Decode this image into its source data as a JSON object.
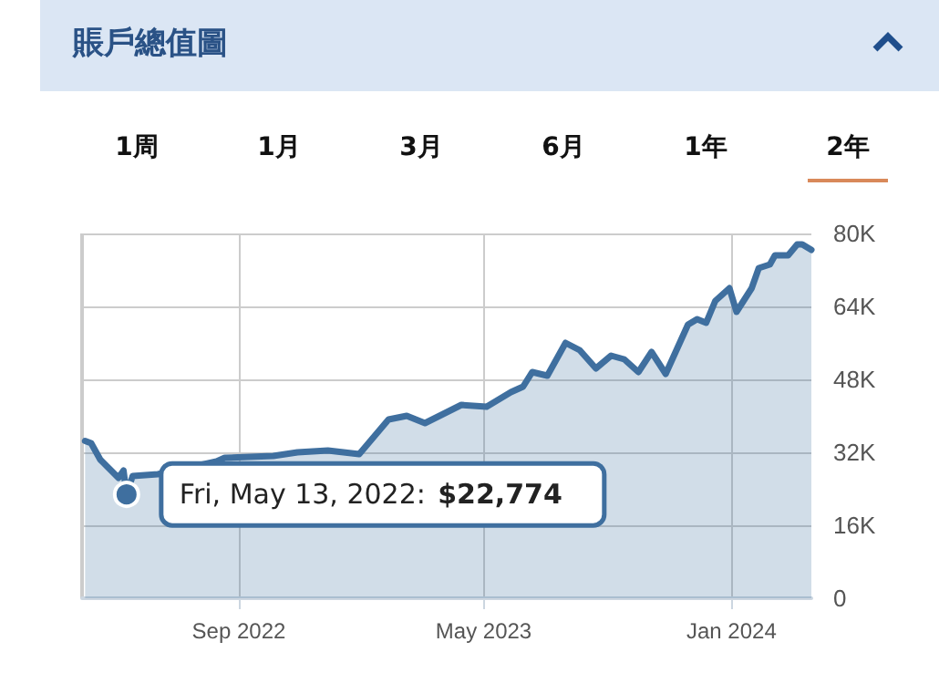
{
  "chart_data": {
    "type": "area",
    "title": "賬戶總值圖",
    "annotations": [
      "1周",
      "1月",
      "3月",
      "6月",
      "1年",
      "2年",
      {
        "text": "Fri, May 13, 2022: $22,774",
        "x": "2022-05-13",
        "y": 22774
      }
    ],
    "x": [
      "2022-04-02",
      "2022-04-08",
      "2022-04-17",
      "2022-04-26",
      "2022-05-05",
      "2022-05-10",
      "2022-05-13",
      "2022-05-19",
      "2022-06-13",
      "2022-08-10",
      "2022-08-18",
      "2022-10-05",
      "2022-10-29",
      "2022-11-28",
      "2022-12-29",
      "2023-01-27",
      "2023-02-14",
      "2023-03-04",
      "2023-04-09",
      "2023-05-04",
      "2023-05-28",
      "2023-06-09",
      "2023-06-18",
      "2023-07-03",
      "2023-07-21",
      "2023-08-04",
      "2023-08-20",
      "2023-09-04",
      "2023-09-17",
      "2023-10-01",
      "2023-10-14",
      "2023-10-28",
      "2023-11-19",
      "2023-11-28",
      "2023-12-07",
      "2023-12-16",
      "2023-12-30",
      "2024-01-06",
      "2024-01-21",
      "2024-01-28",
      "2024-02-08",
      "2024-02-13",
      "2024-02-26",
      "2024-03-06",
      "2024-03-11",
      "2024-03-20"
    ],
    "series": [
      {
        "color": "#3f6f9f",
        "values": [
          34500,
          34000,
          30400,
          28400,
          26400,
          28000,
          22774,
          26800,
          27200,
          30000,
          30800,
          31200,
          32000,
          32400,
          31600,
          39200,
          40000,
          38400,
          42400,
          42000,
          45200,
          46400,
          49600,
          48800,
          56000,
          54400,
          50400,
          53200,
          52400,
          49600,
          54000,
          49200,
          60000,
          61200,
          60400,
          65200,
          68000,
          62800,
          68000,
          72400,
          73200,
          75200,
          75200,
          77600,
          77600,
          76400
        ]
      }
    ],
    "xlim": [
      "2022-03-30",
      "2024-03-20"
    ],
    "xticks": [
      {
        "value": "2022-09-01",
        "label": "Sep 2022"
      },
      {
        "value": "2023-05-01",
        "label": "May 2023"
      },
      {
        "value": "2024-01-01",
        "label": "Jan 2024"
      }
    ],
    "ylim": [
      0,
      80000
    ],
    "yticks": [
      {
        "value": 0,
        "label": "0"
      },
      {
        "value": 16000,
        "label": "16K"
      },
      {
        "value": 32000,
        "label": "32K"
      },
      {
        "value": 48000,
        "label": "48K"
      },
      {
        "value": 64000,
        "label": "64K"
      },
      {
        "value": 80000,
        "label": "80K"
      }
    ],
    "grid": true,
    "line_style": "solid"
  }
}
